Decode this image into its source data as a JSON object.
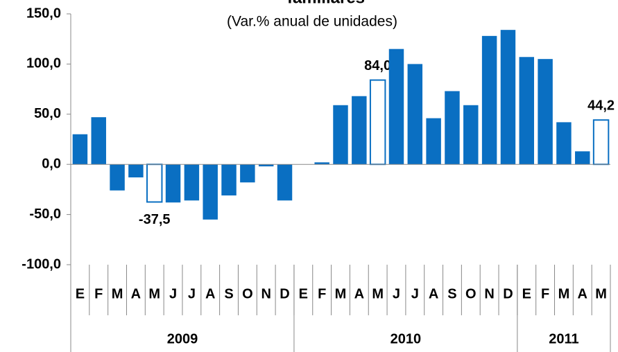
{
  "chart_data": {
    "type": "bar",
    "title": "familiares",
    "subtitle": "(Var.% anual de unidades)",
    "categories": [
      "E",
      "F",
      "M",
      "A",
      "M",
      "J",
      "J",
      "A",
      "S",
      "O",
      "N",
      "D",
      "E",
      "F",
      "M",
      "A",
      "M",
      "J",
      "J",
      "A",
      "S",
      "O",
      "N",
      "D",
      "E",
      "F",
      "M",
      "A",
      "M"
    ],
    "years": [
      {
        "label": "2009",
        "count": 12
      },
      {
        "label": "2010",
        "count": 12
      },
      {
        "label": "2011",
        "count": 5
      }
    ],
    "values": [
      30,
      47,
      -26,
      -13,
      -37.5,
      -38,
      -36,
      -55,
      -31,
      -18,
      -2,
      -36,
      0,
      2,
      59,
      68,
      84,
      115,
      100,
      46,
      73,
      59,
      128,
      134,
      107,
      105,
      42,
      13,
      44.2
    ],
    "value_labels": [
      null,
      null,
      null,
      null,
      "-37,5",
      null,
      null,
      null,
      null,
      null,
      null,
      null,
      null,
      null,
      null,
      null,
      "84,0",
      null,
      null,
      null,
      null,
      null,
      null,
      null,
      null,
      null,
      null,
      null,
      "44,2"
    ],
    "hollow": [
      false,
      false,
      false,
      false,
      true,
      false,
      false,
      false,
      false,
      false,
      false,
      false,
      false,
      false,
      false,
      false,
      true,
      false,
      false,
      false,
      false,
      false,
      false,
      false,
      false,
      false,
      false,
      false,
      true
    ],
    "color": "#0a6fc2",
    "ylim": [
      -100,
      150
    ],
    "yticks": [
      {
        "value": -100,
        "label": "-100,0"
      },
      {
        "value": -50,
        "label": "-50,0"
      },
      {
        "value": 0,
        "label": "0,0"
      },
      {
        "value": 50,
        "label": "50,0"
      },
      {
        "value": 100,
        "label": "100,0"
      },
      {
        "value": 150,
        "label": "150,0"
      }
    ]
  }
}
